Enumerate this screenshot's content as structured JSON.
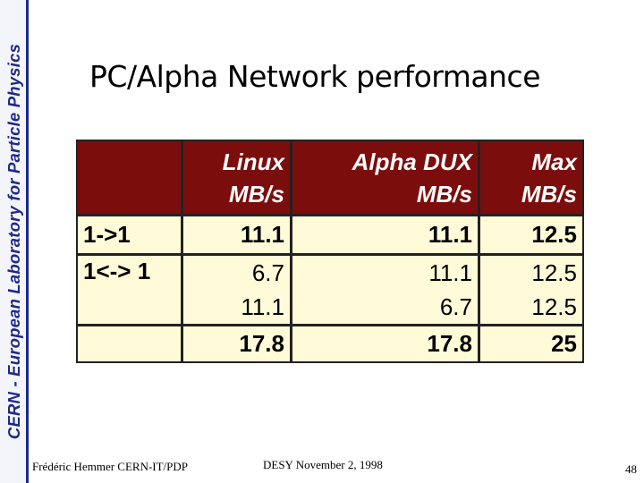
{
  "sidebar": {
    "text": "CERN - European Laboratory for Particle Physics"
  },
  "slide": {
    "title": "PC/Alpha Network performance"
  },
  "table": {
    "headers": [
      {
        "line1": "",
        "line2": ""
      },
      {
        "line1": "Linux",
        "line2": "MB/s"
      },
      {
        "line1": "Alpha DUX",
        "line2": "MB/s"
      },
      {
        "line1": "Max",
        "line2": "MB/s"
      }
    ],
    "rows": [
      {
        "label": "1->1",
        "linux": [
          "11.1"
        ],
        "alpha": [
          "11.1"
        ],
        "max": [
          "12.5"
        ]
      },
      {
        "label": "1<-> 1",
        "linux": [
          "6.7",
          "11.1"
        ],
        "alpha": [
          "11.1",
          "6.7"
        ],
        "max": [
          "12.5",
          "12.5"
        ]
      },
      {
        "label": "",
        "linux": [
          "17.8"
        ],
        "alpha": [
          "17.8"
        ],
        "max": [
          "25"
        ]
      }
    ]
  },
  "footer": {
    "author": "Frédéric Hemmer CERN-IT/PDP",
    "event": "DESY November 2, 1998",
    "page_number": "48"
  }
}
